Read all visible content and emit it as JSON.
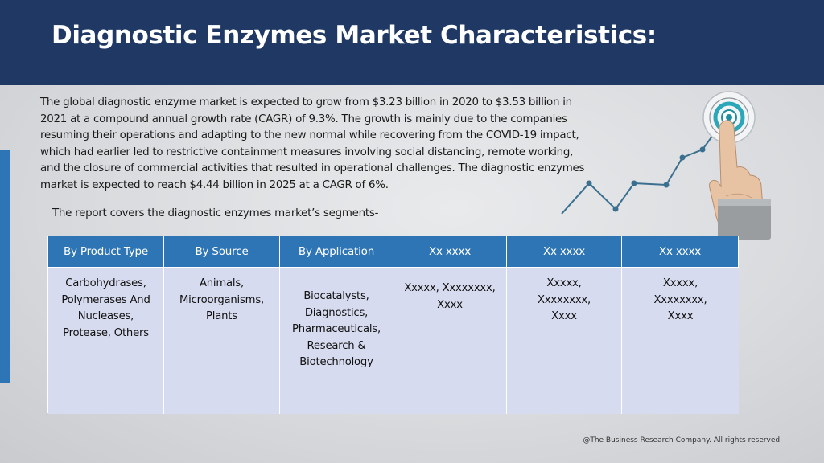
{
  "slide": {
    "title": "Diagnostic Enzymes Market Characteristics:",
    "intro": "The global diagnostic enzyme market is expected to grow from $3.23 billion in 2020 to $3.53 billion in 2021 at a compound annual growth rate (CAGR) of 9.3%. The growth is mainly due to the companies resuming their operations and adapting to the new normal while recovering from the COVID-19 impact, which had earlier led to restrictive containment measures involving social distancing, remote working, and the closure of commercial activities that resulted in operational challenges. The diagnostic enzymes market is expected to reach $4.44 billion in 2025 at a CAGR of 6%.",
    "segments_intro": "The report covers the diagnostic enzymes market’s segments-",
    "footer": "@The Business Research Company. All rights reserved."
  },
  "segments_table": {
    "headers": [
      "By Product Type",
      "By Source",
      "By Application",
      "Xx xxxx",
      "Xx xxxx",
      "Xx xxxx"
    ],
    "cells": [
      "Carbohydrases,\nPolymerases And\nNucleases,\nProtease, Others",
      "Animals,\nMicroorganisms,\nPlants",
      "Biocatalysts,\nDiagnostics,\nPharmaceuticals,\nResearch &\nBiotechnology",
      "Xxxxx, Xxxxxxxx,\nXxxx",
      "Xxxxx,\nXxxxxxxx,\nXxxx",
      "Xxxxx,\nXxxxxxxx,\nXxxx"
    ]
  },
  "colors": {
    "header_bg": "#1f3864",
    "accent_blue": "#2e75b6",
    "table_body": "#d7dbef",
    "trend_line": "#3a6f8f"
  },
  "icons": {
    "illustration": "growth-trend-target-hand-icon"
  }
}
